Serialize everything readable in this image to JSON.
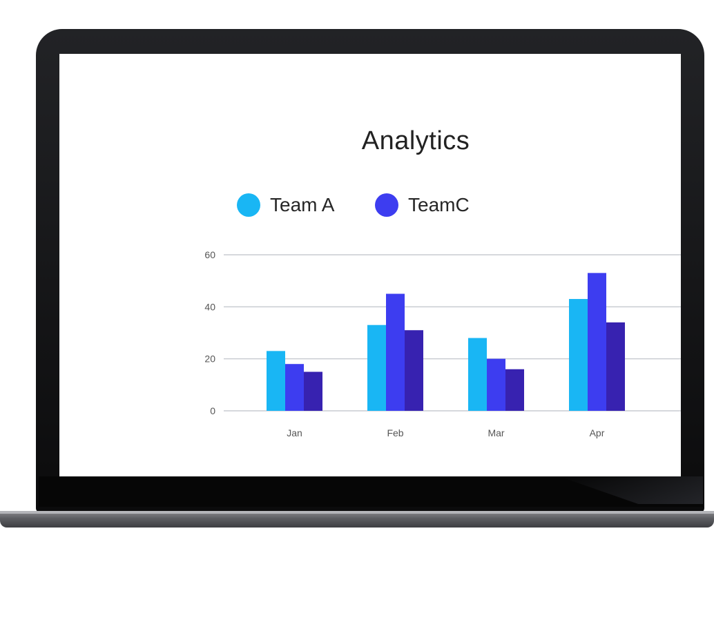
{
  "colors": {
    "team_a": "#19b6f4",
    "team_c": "#3d3df0",
    "series_3": "#3722b0",
    "grid": "#c9ccd1",
    "frame": "#111111",
    "title": "#222222"
  },
  "chart_data": {
    "type": "bar",
    "title": "Analytics",
    "xlabel": "",
    "ylabel": "",
    "categories": [
      "Jan",
      "Feb",
      "Mar",
      "Apr"
    ],
    "series": [
      {
        "name": "Team A",
        "values": [
          23,
          33,
          28,
          43
        ]
      },
      {
        "name": "TeamC",
        "values": [
          18,
          45,
          20,
          53
        ]
      },
      {
        "values": [
          15,
          31,
          16,
          34
        ]
      }
    ],
    "ylim": [
      0,
      60
    ],
    "yticks": [
      "0",
      "20",
      "40",
      "60"
    ],
    "grid": true,
    "legend": "top"
  }
}
